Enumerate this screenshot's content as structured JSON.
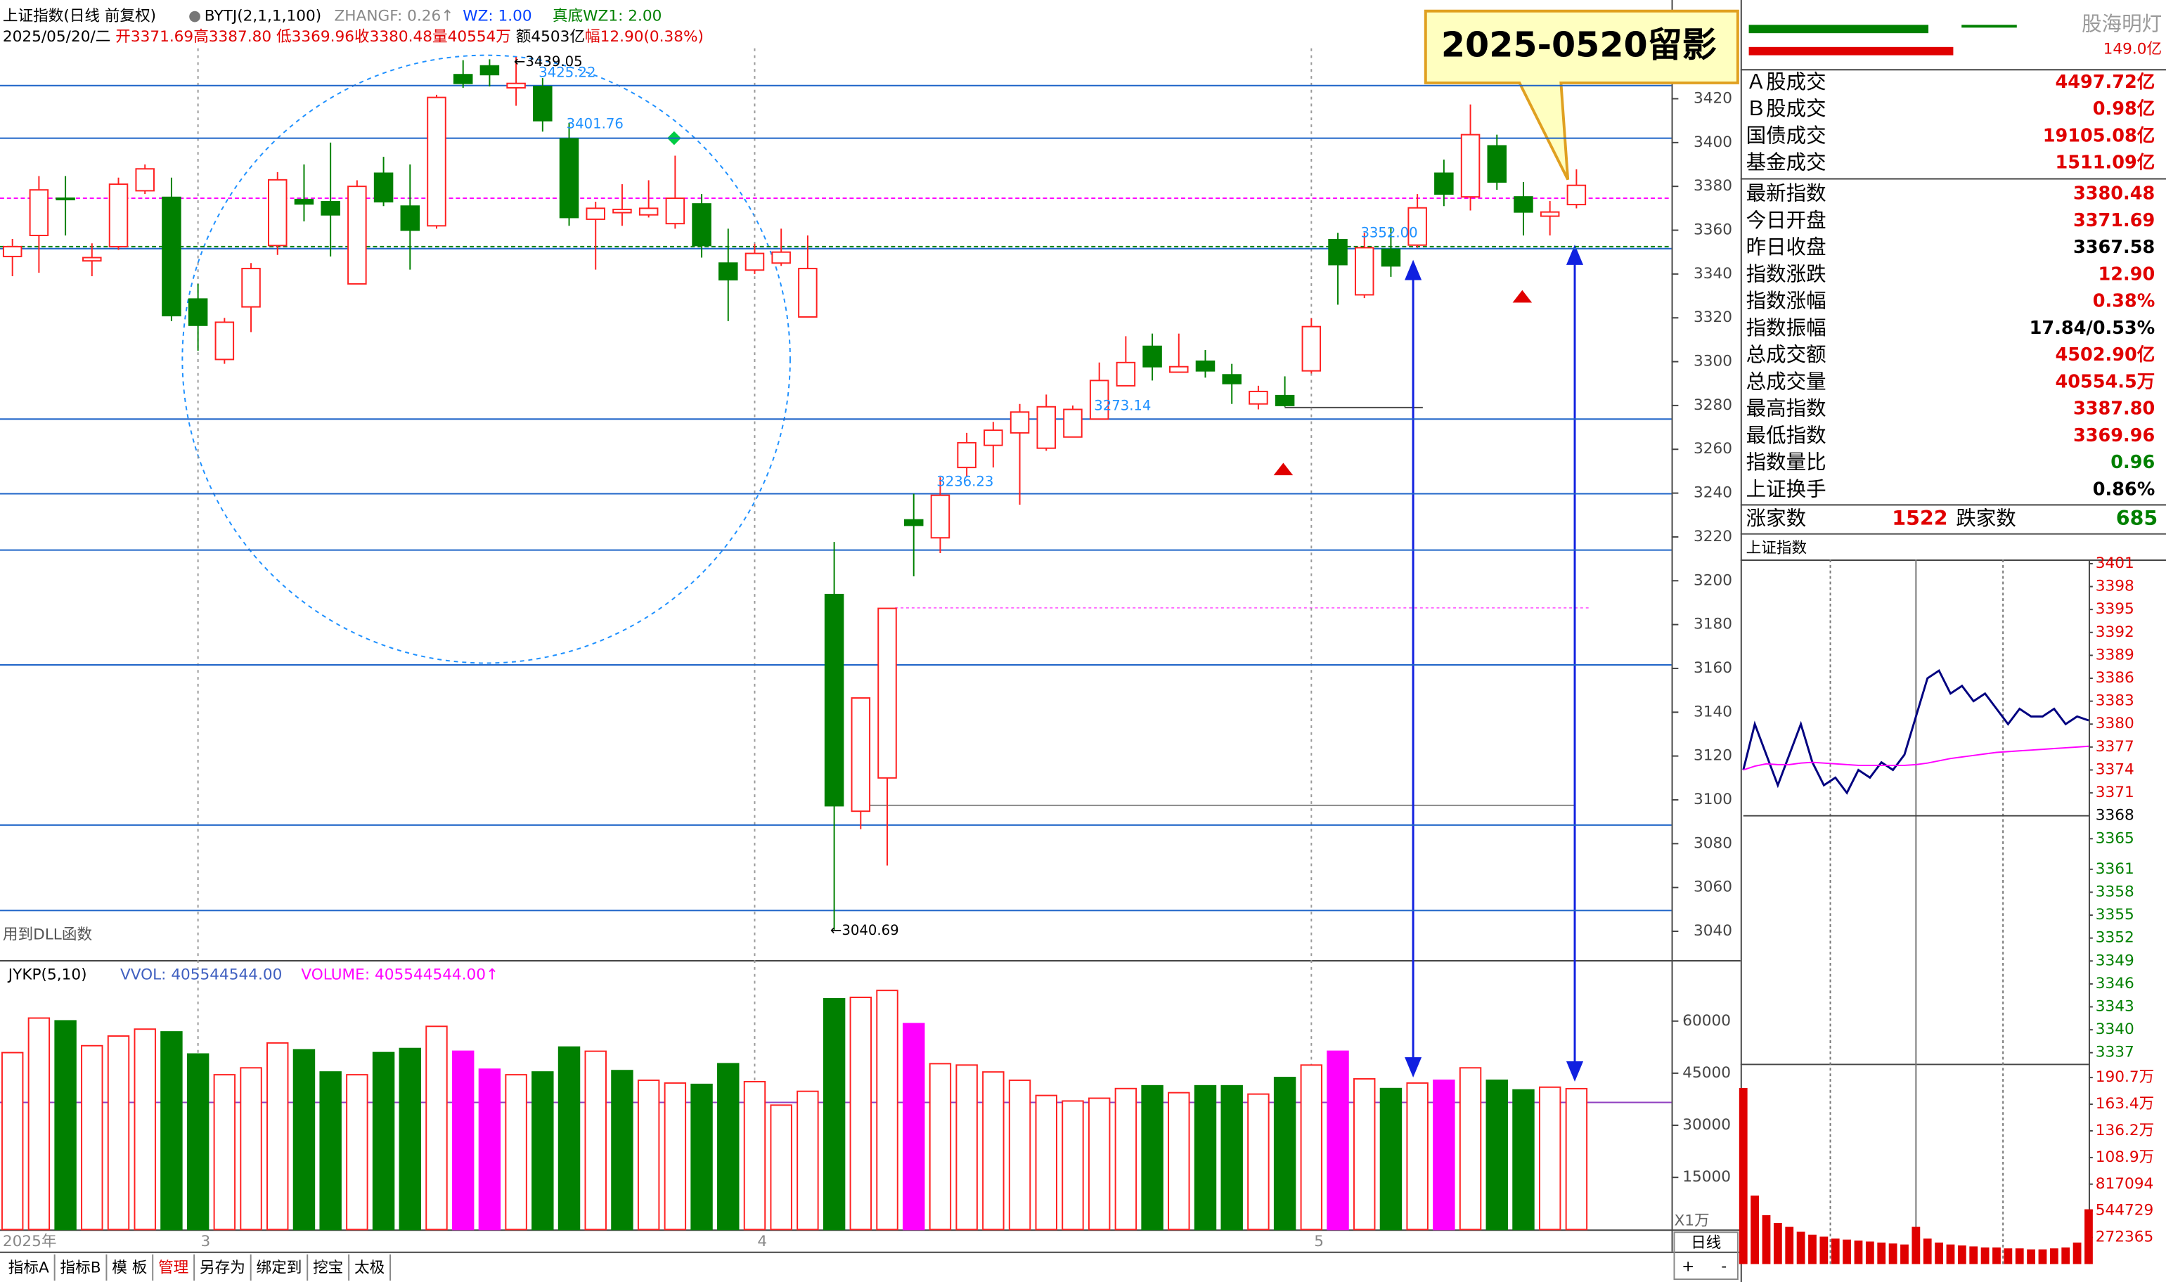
{
  "header": {
    "title": "上证指数(日线 前复权)",
    "indicator": "BYTJ(2,1,1,100)",
    "zhangf": "ZHANGF: 0.26↑",
    "wz": "WZ: 1.00",
    "wz1": "真底WZ1: 2.00",
    "date": "2025/05/20/二",
    "open": "开3371.69",
    "high": "高3387.80",
    "low": "低3369.96",
    "close": "收3380.48",
    "volume": "量40554万",
    "amount": "额4503亿",
    "change": "幅12.90(0.38%)"
  },
  "note": "用到DLL函数",
  "callout": "2025-0520留影",
  "chart_data": [
    {
      "type": "candlestick",
      "up_color": "#ff2020",
      "down_color": "#008000",
      "categories": [
        "2025年",
        null,
        null,
        null,
        null,
        null,
        null,
        "3",
        null,
        null,
        null,
        null,
        null,
        null,
        null,
        null,
        null,
        null,
        null,
        null,
        null,
        null,
        null,
        null,
        null,
        null,
        null,
        null,
        "4",
        null,
        null,
        null,
        null,
        null,
        null,
        null,
        null,
        null,
        null,
        null,
        null,
        null,
        null,
        null,
        null,
        null,
        null,
        null,
        null,
        "5",
        null,
        null,
        null,
        null,
        null,
        null,
        null,
        null,
        null,
        null
      ],
      "open": [
        3348,
        3357.6,
        3374.6,
        3346,
        3352.5,
        3378,
        3375,
        3328.6,
        3301,
        3325,
        3353,
        3374,
        3373,
        3335.5,
        3386,
        3371,
        3362,
        3431,
        3435,
        3425,
        3425.6,
        3401.7,
        3365,
        3368,
        3367,
        3363,
        3372,
        3345,
        3341.8,
        3345,
        3320.4,
        3193.7,
        3094.8,
        3110,
        3227.8,
        3219.6,
        3251.7,
        3261.8,
        3267.5,
        3260.5,
        3265.6,
        3273.8,
        3289,
        3307,
        3295.2,
        3300.2,
        3294,
        3280.7,
        3284.5,
        3295.8,
        3355.7,
        3330.5,
        3351.3,
        3353.2,
        3386,
        3375.2,
        3398.5,
        3375.2,
        3366.4,
        3371.69
      ],
      "high": [
        3356,
        3384.7,
        3384.7,
        3354,
        3384,
        3390,
        3384,
        3335.5,
        3320,
        3345,
        3386.5,
        3390,
        3400,
        3382.8,
        3393.5,
        3390,
        3421.8,
        3437.6,
        3438,
        3439.05,
        3429.4,
        3409,
        3373,
        3381,
        3382.8,
        3394,
        3376.5,
        3360.7,
        3353.8,
        3360.7,
        3357.6,
        3217.7,
        3146.5,
        3187.4,
        3239.7,
        3247.3,
        3267.5,
        3272.5,
        3280.7,
        3285,
        3280,
        3299.6,
        3311.6,
        3312.8,
        3312.8,
        3305.3,
        3299,
        3289,
        3293.3,
        3319.8,
        3358.8,
        3358.8,
        3361.4,
        3376.5,
        3392.2,
        3417.4,
        3403.6,
        3382,
        3373.3,
        3387.8
      ],
      "low": [
        3339,
        3340.6,
        3357.6,
        3339,
        3351,
        3376.5,
        3318.5,
        3305,
        3299,
        3313.5,
        3348.7,
        3364,
        3348,
        3335.5,
        3371,
        3342,
        3360.7,
        3425,
        3425.6,
        3416.8,
        3405,
        3362,
        3342,
        3362,
        3365.8,
        3360.7,
        3347.5,
        3318.5,
        3340,
        3343.7,
        3320.4,
        3040.69,
        3086.6,
        3070,
        3202,
        3212.6,
        3247.3,
        3251.7,
        3234.7,
        3259.3,
        3265.6,
        3273.8,
        3289,
        3291.4,
        3295.2,
        3292.7,
        3280.7,
        3278.2,
        3279.4,
        3294.6,
        3326,
        3329,
        3338.7,
        3352,
        3371,
        3369,
        3378.4,
        3357.6,
        3357.6,
        3369.96
      ],
      "close": [
        3352.5,
        3378.4,
        3374,
        3347.5,
        3381,
        3388,
        3321,
        3316.6,
        3318,
        3342.5,
        3383,
        3372,
        3367,
        3380,
        3373,
        3360,
        3420.6,
        3427,
        3431,
        3427,
        3410,
        3365.8,
        3370,
        3369.5,
        3370,
        3374.6,
        3353,
        3337.4,
        3349.4,
        3350,
        3342.5,
        3097.3,
        3146.5,
        3187.4,
        3225.3,
        3239,
        3263,
        3268.7,
        3277,
        3279.4,
        3278.2,
        3291.4,
        3299.6,
        3297.7,
        3297.7,
        3295.8,
        3290,
        3286.4,
        3280,
        3316,
        3344.3,
        3352,
        3343.7,
        3370.2,
        3376.5,
        3403.6,
        3382,
        3368.3,
        3368.3,
        3380.48
      ],
      "ylim": [
        3030,
        3443
      ],
      "yticks": [
        3040,
        3060,
        3080,
        3100,
        3120,
        3140,
        3160,
        3180,
        3200,
        3220,
        3240,
        3260,
        3280,
        3300,
        3320,
        3340,
        3360,
        3380,
        3400,
        3420
      ],
      "hlines": [
        {
          "value": 3426,
          "color": "#1e64c8"
        },
        {
          "value": 3402,
          "color": "#1e64c8"
        },
        {
          "value": 3351.6,
          "color": "#1e64c8"
        },
        {
          "value": 3273.8,
          "color": "#1e64c8"
        },
        {
          "value": 3239.7,
          "color": "#1e64c8"
        },
        {
          "value": 3214,
          "color": "#1e64c8"
        },
        {
          "value": 3161.6,
          "color": "#1e64c8"
        },
        {
          "value": 3088.5,
          "color": "#1e64c8"
        },
        {
          "value": 3049.5,
          "color": "#1e64c8"
        },
        {
          "value": 3374.6,
          "color": "#ff00ff",
          "dash": true
        },
        {
          "value": 3352.5,
          "color": "#008000",
          "dash": true
        }
      ],
      "annotations": [
        "←3439.05",
        "3425.22",
        "3401.76",
        "3352.00",
        "3273.14",
        "3236.23",
        "←3040.69"
      ]
    },
    {
      "type": "bar",
      "title": "JYKP(5,10)",
      "legend": [
        "VVOL: 405544544.00",
        "VOLUME: 405544544.00↑"
      ],
      "unit_label": "X1万",
      "hollow_color": "#ff2020",
      "values": [
        50930,
        60875,
        60080,
        52920,
        55700,
        57690,
        56900,
        50530,
        44560,
        46550,
        53710,
        51720,
        45360,
        44560,
        50930,
        52120,
        58490,
        51330,
        46150,
        44560,
        45360,
        52520,
        51330,
        45750,
        42970,
        42170,
        41780,
        47740,
        42570,
        35810,
        39790,
        66450,
        66840,
        68830,
        59280,
        47740,
        47350,
        45360,
        42970,
        38590,
        37000,
        37800,
        40580,
        41380,
        39390,
        41380,
        41380,
        38990,
        43760,
        47350,
        51330,
        43370,
        40580,
        42170,
        42970,
        46550,
        42970,
        40190,
        40980,
        40554.5
      ],
      "colors": [
        "#ff2020",
        "#ff2020",
        "#008000",
        "#ff2020",
        "#ff2020",
        "#ff2020",
        "#008000",
        "#008000",
        "#ff2020",
        "#ff2020",
        "#ff2020",
        "#008000",
        "#008000",
        "#ff2020",
        "#008000",
        "#008000",
        "#ff2020",
        "#ff00ff",
        "#ff00ff",
        "#ff2020",
        "#008000",
        "#008000",
        "#ff2020",
        "#008000",
        "#ff2020",
        "#ff2020",
        "#008000",
        "#008000",
        "#ff2020",
        "#ff2020",
        "#ff2020",
        "#008000",
        "#ff2020",
        "#ff2020",
        "#ff00ff",
        "#ff2020",
        "#ff2020",
        "#ff2020",
        "#ff2020",
        "#ff2020",
        "#ff2020",
        "#ff2020",
        "#ff2020",
        "#008000",
        "#ff2020",
        "#008000",
        "#008000",
        "#ff2020",
        "#008000",
        "#ff2020",
        "#ff00ff",
        "#ff2020",
        "#008000",
        "#ff2020",
        "#ff00ff",
        "#ff2020",
        "#008000",
        "#008000",
        "#ff2020",
        "#ff2020"
      ],
      "ylim": [
        0,
        70000
      ],
      "yticks": [
        15000,
        30000,
        45000,
        60000
      ]
    },
    {
      "type": "line",
      "title": "上证指数",
      "x": [
        0,
        8,
        16,
        24,
        32,
        40,
        48,
        56,
        64,
        72,
        80,
        88,
        96,
        104,
        112,
        120,
        128,
        136,
        144,
        152,
        160,
        168,
        176,
        184,
        192,
        200,
        208,
        216,
        224,
        232,
        240
      ],
      "series": [
        {
          "color": "#000080",
          "values": [
            3374,
            3380,
            3376,
            3372,
            3376,
            3380,
            3375,
            3372,
            3373,
            3371,
            3374,
            3373,
            3375,
            3374,
            3376,
            3381,
            3386,
            3387,
            3384,
            3385,
            3383,
            3384,
            3382,
            3380,
            3382,
            3381,
            3381,
            3382,
            3380,
            3381,
            3380.48
          ]
        },
        {
          "color": "#ff00ff",
          "values": [
            3374,
            3374.5,
            3374.8,
            3374.7,
            3374.7,
            3374.9,
            3375,
            3374.9,
            3374.8,
            3374.7,
            3374.6,
            3374.6,
            3374.6,
            3374.6,
            3374.6,
            3374.7,
            3374.9,
            3375.2,
            3375.5,
            3375.7,
            3375.9,
            3376.1,
            3376.3,
            3376.4,
            3376.5,
            3376.6,
            3376.7,
            3376.8,
            3376.9,
            3377,
            3377.1
          ]
        }
      ],
      "xlim": [
        0,
        240
      ],
      "ylim": [
        3337,
        3401
      ],
      "yticks": [
        3337,
        3340,
        3343,
        3346,
        3349,
        3352,
        3355,
        3358,
        3361,
        3365,
        3368,
        3371,
        3374,
        3377,
        3380,
        3383,
        3386,
        3389,
        3392,
        3395,
        3398,
        3401
      ]
    },
    {
      "type": "bar",
      "color": "#e00000",
      "values": [
        1800000,
        700000,
        500000,
        420000,
        380000,
        330000,
        300000,
        280000,
        260000,
        250000,
        240000,
        230000,
        220000,
        210000,
        200000,
        380000,
        260000,
        220000,
        200000,
        190000,
        180000,
        170000,
        170000,
        160000,
        160000,
        150000,
        150000,
        160000,
        170000,
        220000,
        560000
      ],
      "ylim": [
        0,
        1907000
      ],
      "yticks": [
        {
          "value": 1907000,
          "label": "190.7万"
        },
        {
          "value": 1634000,
          "label": "163.4万"
        },
        {
          "value": 1362000,
          "label": "136.2万"
        },
        {
          "value": 1089000,
          "label": "108.9万"
        },
        817094,
        544729,
        272365
      ]
    }
  ],
  "side_panel": {
    "brand": "股海明灯",
    "top_value": "149.0亿",
    "rows": [
      [
        "Ａ股成交",
        "4497.72亿"
      ],
      [
        "Ｂ股成交",
        "0.98亿"
      ],
      [
        "国债成交",
        "19105.08亿"
      ],
      [
        "基金成交",
        "1511.09亿"
      ],
      [
        "最新指数",
        "3380.48"
      ],
      [
        "今日开盘",
        "3371.69"
      ],
      [
        "昨日收盘",
        "3367.58"
      ],
      [
        "指数涨跌",
        "12.90"
      ],
      [
        "指数涨幅",
        "0.38%"
      ],
      [
        "指数振幅",
        "17.84/0.53%"
      ],
      [
        "总成交额",
        "4502.90亿"
      ],
      [
        "总成交量",
        "40554.5万"
      ],
      [
        "最高指数",
        "3387.80"
      ],
      [
        "最低指数",
        "3369.96"
      ],
      [
        "指数量比",
        "0.96"
      ],
      [
        "上证换手",
        "0.86%"
      ]
    ],
    "breadth": [
      "涨家数",
      "1522",
      "跌家数",
      "685"
    ]
  },
  "tabs": [
    "指标A",
    "指标B",
    "模 板",
    "管理",
    "另存为",
    "绑定到",
    "挖宝",
    "太极"
  ],
  "period": "日线",
  "zoom": [
    "+",
    "-"
  ]
}
